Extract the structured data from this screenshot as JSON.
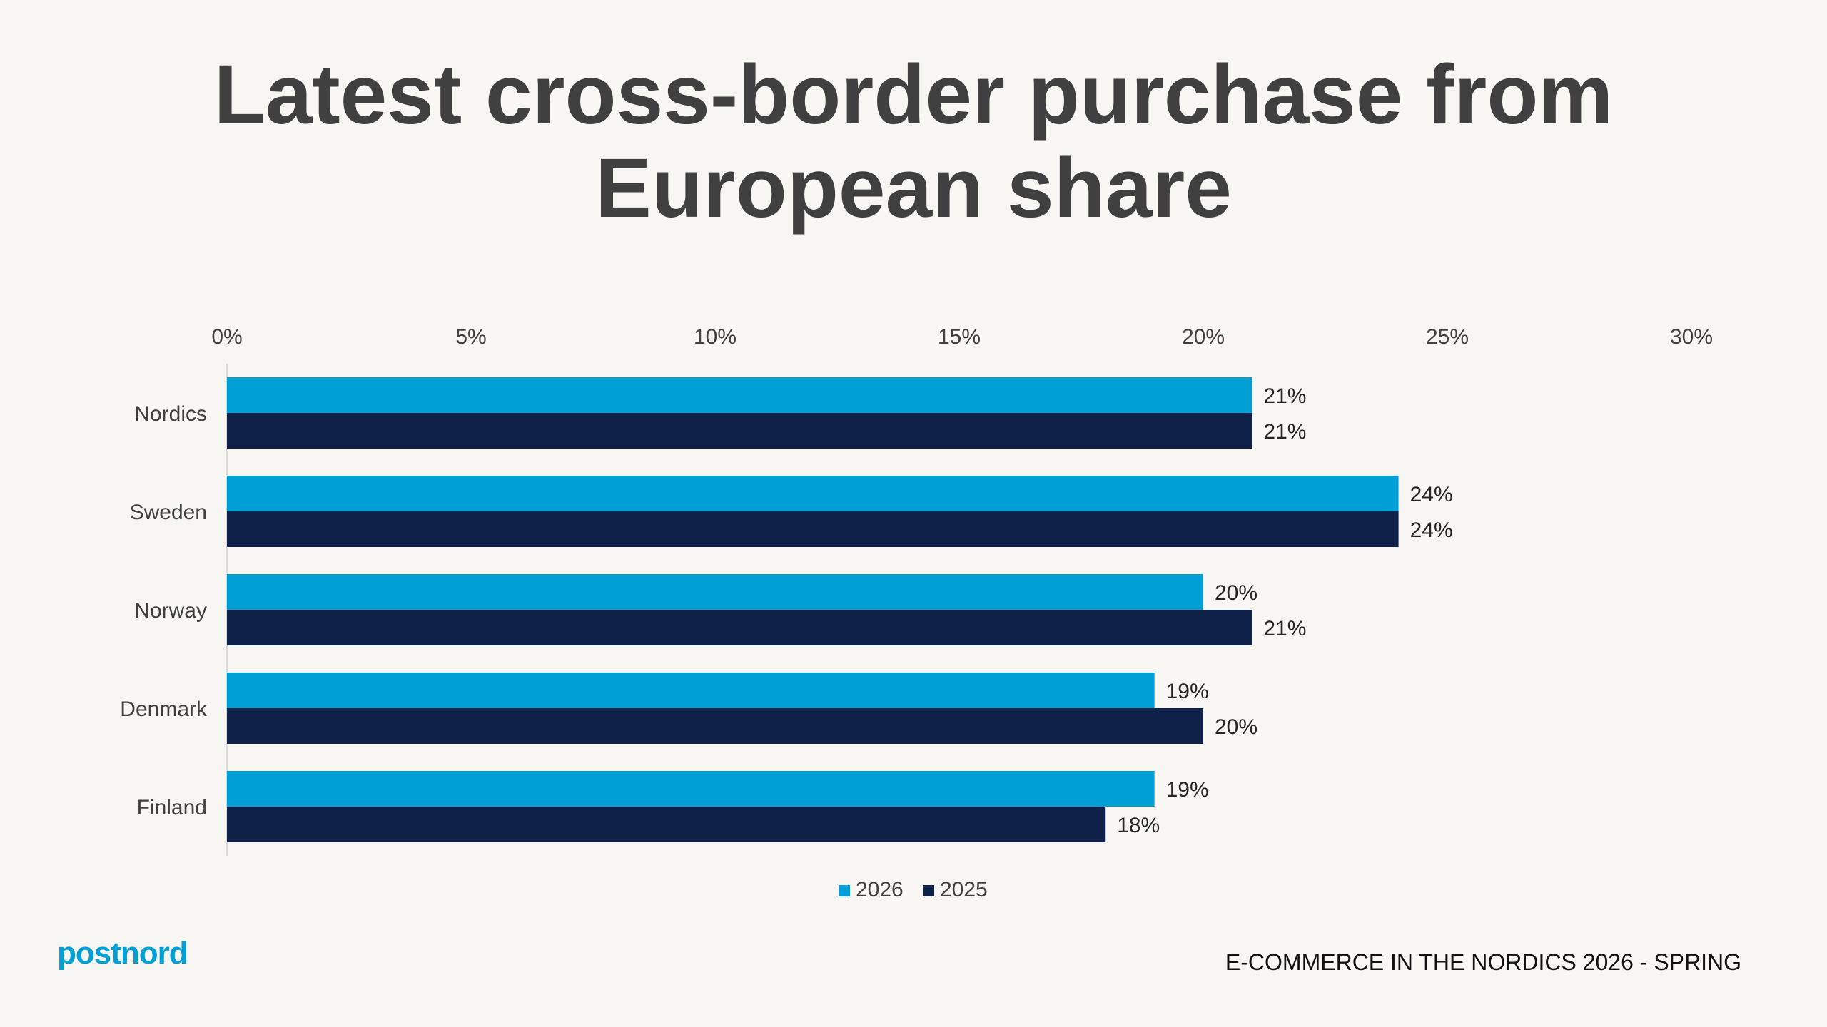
{
  "title": {
    "line1": "Latest cross-border purchase from",
    "line2": "European share"
  },
  "footer": {
    "logo_text": "postnord",
    "report_label": "E-COMMERCE IN THE NORDICS 2026 - SPRING"
  },
  "chart_data": {
    "type": "bar",
    "orientation": "horizontal",
    "categories": [
      "Nordics",
      "Sweden",
      "Norway",
      "Denmark",
      "Finland"
    ],
    "series": [
      {
        "name": "2026",
        "color": "#00a0d6",
        "values": [
          21,
          24,
          20,
          19,
          19
        ],
        "labels": [
          "21%",
          "24%",
          "20%",
          "19%",
          "19%"
        ]
      },
      {
        "name": "2025",
        "color": "#0f2148",
        "values": [
          21,
          24,
          21,
          20,
          18
        ],
        "labels": [
          "21%",
          "24%",
          "21%",
          "20%",
          "18%"
        ]
      }
    ],
    "xlim": [
      0,
      30
    ],
    "xticks": [
      0,
      5,
      10,
      15,
      20,
      25,
      30
    ],
    "xtick_labels": [
      "0%",
      "5%",
      "10%",
      "15%",
      "20%",
      "25%",
      "30%"
    ],
    "axis_position": "top",
    "legend_position": "bottom-center",
    "grid": false
  }
}
